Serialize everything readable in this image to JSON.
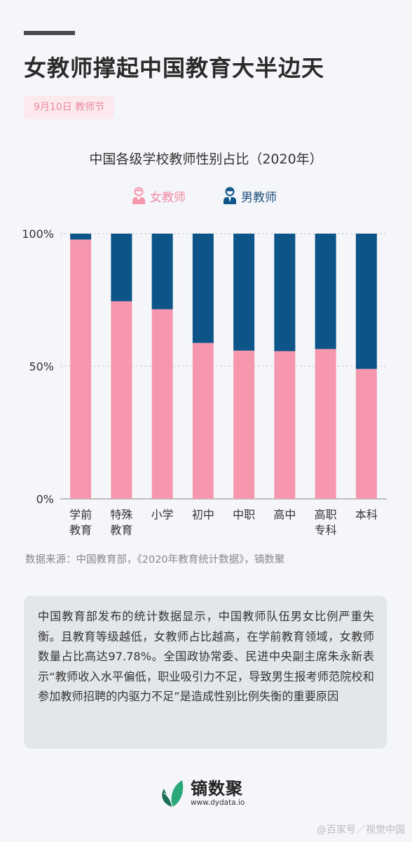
{
  "header": {
    "title": "女教师撑起中国教育大半边天",
    "date_tag": "9月10日 教师节"
  },
  "chart_data": {
    "type": "bar",
    "stacked": true,
    "title": "中国各级学校教师性别占比（2020年）",
    "categories": [
      [
        "学前",
        "教育"
      ],
      [
        "特殊",
        "教育"
      ],
      [
        "小学"
      ],
      [
        "初中"
      ],
      [
        "中职"
      ],
      [
        "高中"
      ],
      [
        "高职",
        "专科"
      ],
      [
        "本科"
      ]
    ],
    "series": [
      {
        "name": "女教师",
        "color": "#f797ad",
        "values": [
          97.78,
          74.5,
          71.5,
          58.8,
          55.9,
          55.7,
          56.5,
          49.0
        ]
      },
      {
        "name": "男教师",
        "color": "#0d5588",
        "values": [
          2.22,
          25.5,
          28.5,
          41.2,
          44.1,
          44.3,
          43.5,
          51.0
        ]
      }
    ],
    "y_ticks": [
      "100%",
      "50%",
      "0%"
    ],
    "ylim": [
      0,
      100
    ],
    "grid": true,
    "legend_position": "top-center"
  },
  "source": "数据来源：中国教育部，《2020年教育统计数据》，镝数聚",
  "description": "中国教育部发布的统计数据显示，中国教师队伍男女比例严重失衡。且教育等级越低，女教师占比越高，在学前教育领域，女教师数量占比高达97.78%。全国政协常委、民进中央副主席朱永新表示“教师收入水平偏低，职业吸引力不足，导致男生报考师范院校和参加教师招聘的内驱力不足”是造成性别比例失衡的重要原因",
  "brand": {
    "name": "镝数聚",
    "url": "www.dydata.io",
    "icon": "leaf-logo-icon",
    "colors": [
      "#2aa87a",
      "#1d6f57"
    ]
  },
  "watermark": "@百家号／视觉中国"
}
